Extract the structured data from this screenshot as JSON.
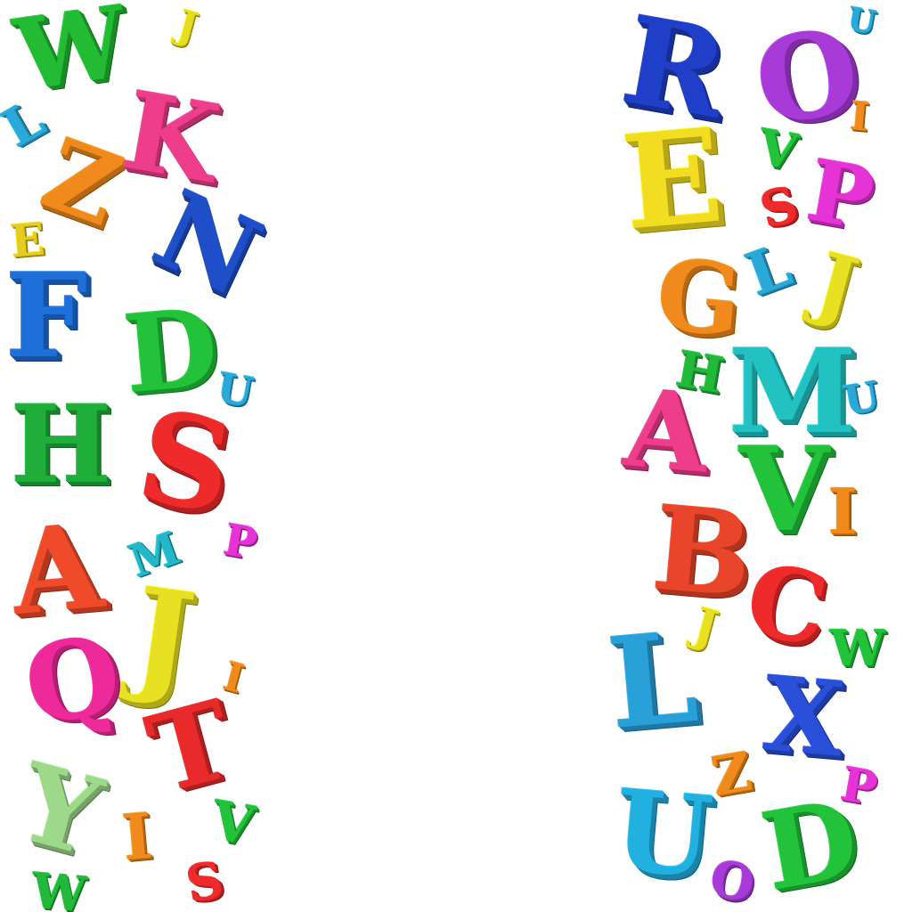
{
  "left_letters": [
    {
      "char": "W",
      "color": "#22bb33"
    },
    {
      "char": "J",
      "color": "#e6dd22"
    },
    {
      "char": "L",
      "color": "#2aa9d8"
    },
    {
      "char": "Z",
      "color": "#f08a1c"
    },
    {
      "char": "K",
      "color": "#ee3d8a"
    },
    {
      "char": "E",
      "color": "#e6cc22"
    },
    {
      "char": "N",
      "color": "#1f4fc8"
    },
    {
      "char": "F",
      "color": "#1f6fd8"
    },
    {
      "char": "D",
      "color": "#22c23a"
    },
    {
      "char": "U",
      "color": "#2aa9d8"
    },
    {
      "char": "H",
      "color": "#1fae3a"
    },
    {
      "char": "S",
      "color": "#ee2a2a"
    },
    {
      "char": "A",
      "color": "#ef4a2a"
    },
    {
      "char": "M",
      "color": "#22b8c8"
    },
    {
      "char": "P",
      "color": "#e633d6"
    },
    {
      "char": "J",
      "color": "#e8e022"
    },
    {
      "char": "Q",
      "color": "#ee2a9a"
    },
    {
      "char": "I",
      "color": "#f08a1c"
    },
    {
      "char": "T",
      "color": "#e82a2a"
    },
    {
      "char": "Y",
      "color": "#9ed88a"
    },
    {
      "char": "I",
      "color": "#f08a1c"
    },
    {
      "char": "V",
      "color": "#22c23a"
    },
    {
      "char": "S",
      "color": "#ee2a2a"
    },
    {
      "char": "W",
      "color": "#22b83a"
    }
  ],
  "right_letters": [
    {
      "char": "R",
      "color": "#1f3fc8"
    },
    {
      "char": "O",
      "color": "#a83ad8"
    },
    {
      "char": "U",
      "color": "#2aa9d8"
    },
    {
      "char": "I",
      "color": "#f08a1c"
    },
    {
      "char": "E",
      "color": "#f2dd22"
    },
    {
      "char": "V",
      "color": "#22c23a"
    },
    {
      "char": "S",
      "color": "#ee2a2a"
    },
    {
      "char": "P",
      "color": "#e633d6"
    },
    {
      "char": "G",
      "color": "#f08a1c"
    },
    {
      "char": "L",
      "color": "#2aa9d8"
    },
    {
      "char": "J",
      "color": "#e8e022"
    },
    {
      "char": "H",
      "color": "#22b83a"
    },
    {
      "char": "M",
      "color": "#22c2c2"
    },
    {
      "char": "U",
      "color": "#2aa9d8"
    },
    {
      "char": "A",
      "color": "#ee3d8a"
    },
    {
      "char": "V",
      "color": "#22c23a"
    },
    {
      "char": "I",
      "color": "#f08a1c"
    },
    {
      "char": "B",
      "color": "#e8452a"
    },
    {
      "char": "C",
      "color": "#ee2a2a"
    },
    {
      "char": "J",
      "color": "#e8e022"
    },
    {
      "char": "W",
      "color": "#22c23a"
    },
    {
      "char": "L",
      "color": "#2aa0d8"
    },
    {
      "char": "X",
      "color": "#2a4fd8"
    },
    {
      "char": "Z",
      "color": "#f08a1c"
    },
    {
      "char": "P",
      "color": "#e633d6"
    },
    {
      "char": "U",
      "color": "#22b0e0"
    },
    {
      "char": "D",
      "color": "#22c23a"
    },
    {
      "char": "O",
      "color": "#a83ad8"
    }
  ]
}
